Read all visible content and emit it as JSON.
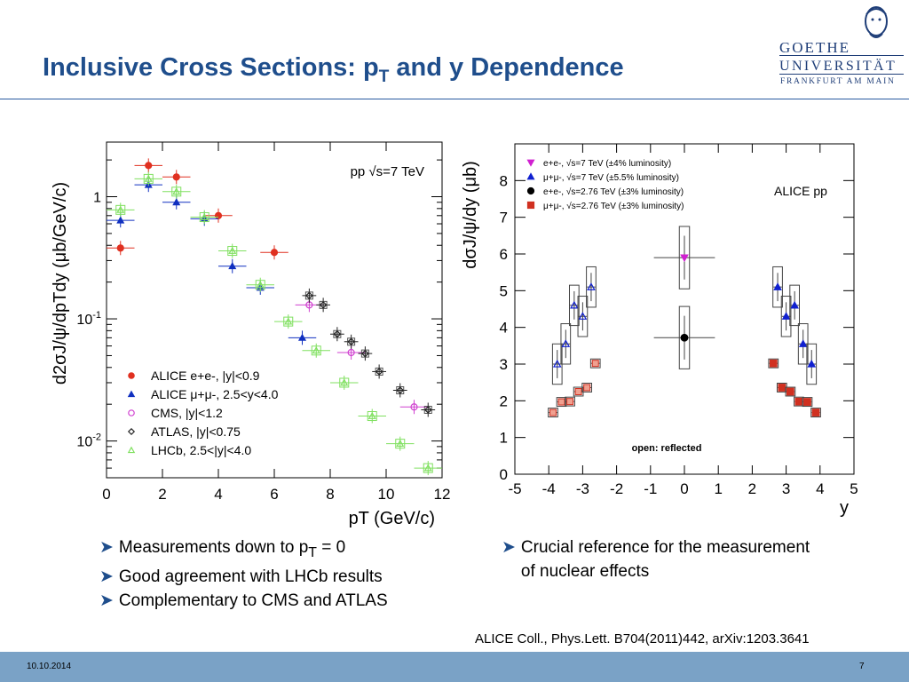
{
  "slide": {
    "title_main": "Inclusive Cross Sections: p",
    "title_sub": "T",
    "title_rest": " and y Dependence",
    "logo": {
      "line1": "GOETHE",
      "line2": "UNIVERSITÄT",
      "line3": "FRANKFURT AM MAIN"
    },
    "bullets_left": [
      {
        "pre": "Measurements down to p",
        "sub": "T",
        "post": " = 0"
      },
      {
        "pre": "Good agreement with LHCb results",
        "sub": "",
        "post": ""
      },
      {
        "pre": "Complementary to CMS and ATLAS",
        "sub": "",
        "post": ""
      }
    ],
    "bullets_right": [
      {
        "pre": "Crucial reference for the measurement of nuclear effects"
      }
    ],
    "reference": "ALICE Coll., Phys.Lett. B704(2011)442, arXiv:1203.3641",
    "footer_date": "10.10.2014",
    "footer_page": "7",
    "colors": {
      "title": "#1f4e8c",
      "footer": "#7aa2c6",
      "accent": "#1f4e8c"
    }
  },
  "chart_data": [
    {
      "type": "scatter",
      "log_y": true,
      "xlim": [
        0,
        12
      ],
      "ylim": [
        0.005,
        2.8
      ],
      "x_ticks": [
        "0",
        "2",
        "4",
        "6",
        "8",
        "10",
        "12"
      ],
      "y_ticks": [
        {
          "value": 1,
          "label": "1"
        },
        {
          "value": 0.1,
          "label": "10-1"
        },
        {
          "value": 0.01,
          "label": "10-2"
        }
      ],
      "xlabel": "pT (GeV/c)",
      "ylabel": "d2σJ/ψ/dpTdy (μb/GeV/c)",
      "annotation": "pp √s=7 TeV",
      "legend_position": "bottom-left",
      "series": [
        {
          "name": "ALICE e+e-, |y|<0.9",
          "color": "#e03020",
          "marker": "circle-filled",
          "x": [
            0.5,
            1.5,
            2.5,
            4.0,
            6.0
          ],
          "y": [
            0.38,
            1.8,
            1.45,
            0.7,
            0.35
          ]
        },
        {
          "name": "ALICE μ+μ-, 2.5<y<4.0",
          "color": "#1030c0",
          "marker": "triangle-filled",
          "x": [
            0.5,
            1.5,
            2.5,
            3.5,
            4.5,
            5.5,
            7.0
          ],
          "y": [
            0.64,
            1.25,
            0.9,
            0.66,
            0.27,
            0.18,
            0.07
          ]
        },
        {
          "name": "CMS, |y|<1.2",
          "color": "#d040d0",
          "marker": "circle-open",
          "x": [
            7.25,
            8.75,
            11.0
          ],
          "y": [
            0.13,
            0.053,
            0.019
          ]
        },
        {
          "name": "ATLAS, |y|<0.75",
          "color": "#222222",
          "marker": "diamond-open",
          "x": [
            7.25,
            7.75,
            8.25,
            8.75,
            9.25,
            9.75,
            10.5,
            11.5
          ],
          "y": [
            0.155,
            0.13,
            0.075,
            0.065,
            0.052,
            0.037,
            0.026,
            0.018
          ]
        },
        {
          "name": "LHCb, 2.5<|y|<4.0",
          "color": "#80e060",
          "marker": "triangle-open",
          "x": [
            0.5,
            1.5,
            2.5,
            3.5,
            4.5,
            5.5,
            6.5,
            7.5,
            8.5,
            9.5,
            10.5,
            11.5
          ],
          "y": [
            0.78,
            1.4,
            1.1,
            0.68,
            0.36,
            0.19,
            0.095,
            0.055,
            0.03,
            0.016,
            0.0095,
            0.006
          ]
        }
      ]
    },
    {
      "type": "scatter",
      "xlim": [
        -5,
        5
      ],
      "ylim": [
        0,
        9
      ],
      "x_ticks": [
        "-5",
        "-4",
        "-3",
        "-2",
        "-1",
        "0",
        "1",
        "2",
        "3",
        "4",
        "5"
      ],
      "y_ticks": [
        "0",
        "1",
        "2",
        "3",
        "4",
        "5",
        "6",
        "7",
        "8"
      ],
      "xlabel": "y",
      "ylabel": "dσJ/ψ/dy (μb)",
      "annotation": "ALICE pp",
      "note": "open: reflected",
      "legend_position": "top-left",
      "series": [
        {
          "name": "e+e-, √s=7 TeV (±4% luminosity)",
          "color": "#d020d0",
          "marker": "triangle-down-filled",
          "x": [
            0
          ],
          "y": [
            5.9
          ]
        },
        {
          "name": "μ+μ-, √s=7 TeV (±5.5% luminosity)",
          "color": "#1020d0",
          "marker": "triangle-filled",
          "x": [
            2.75,
            3.0,
            3.25,
            3.5,
            3.75,
            -3.75,
            -3.5,
            -3.25,
            -3.0,
            -2.75
          ],
          "y": [
            5.1,
            4.3,
            4.6,
            3.55,
            3.0,
            3.0,
            3.55,
            4.6,
            4.3,
            5.1
          ]
        },
        {
          "name": "e+e-, √s=2.76 TeV (±3% luminosity)",
          "color": "#000000",
          "marker": "circle-filled",
          "x": [
            0
          ],
          "y": [
            3.72
          ]
        },
        {
          "name": "μ+μ-, √s=2.76 TeV (±3% luminosity)",
          "color": "#d03020",
          "marker": "square-filled",
          "x": [
            2.625,
            2.875,
            3.125,
            3.375,
            3.625,
            3.875,
            -3.875,
            -3.625,
            -3.375,
            -3.125,
            -2.875,
            -2.625
          ],
          "y": [
            3.02,
            2.36,
            2.25,
            1.98,
            1.97,
            1.68,
            1.68,
            1.97,
            1.98,
            2.25,
            2.36,
            3.02
          ]
        }
      ]
    }
  ]
}
